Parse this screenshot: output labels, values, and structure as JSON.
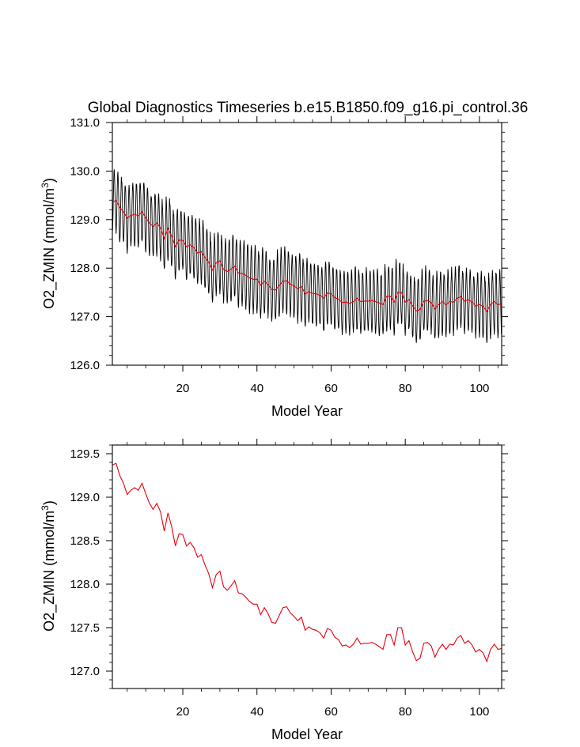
{
  "chart_data": [
    {
      "type": "line",
      "title": "Global Diagnostics Timeseries b.e15.B1850.f09_g16.pi_control.36",
      "xlabel": "Model Year",
      "ylabel": "O2_ZMIN (mmol/m",
      "ylabel_sup": "3",
      "ylabel_close": ")",
      "xlim": [
        1,
        106
      ],
      "ylim": [
        126.0,
        131.0
      ],
      "xticks": [
        20,
        40,
        60,
        80,
        100
      ],
      "xtick_labels": [
        "20",
        "40",
        "60",
        "80",
        "100"
      ],
      "yticks": [
        126.0,
        127.0,
        128.0,
        129.0,
        130.0,
        131.0
      ],
      "ytick_labels": [
        "126.0",
        "127.0",
        "128.0",
        "129.0",
        "130.0",
        "131.0"
      ],
      "grid": false,
      "series": [
        {
          "color": "#000000",
          "kind": "monthly",
          "amplitude_note": "seasonal cycle around annual mean, peak-to-trough about 1.3 mmol/m3"
        },
        {
          "color": "#e8000b",
          "kind": "annual-mean"
        }
      ]
    },
    {
      "type": "line",
      "title": "",
      "xlabel": "Model Year",
      "ylabel": "O2_ZMIN (mmol/m",
      "ylabel_sup": "3",
      "ylabel_close": ")",
      "xlim": [
        1,
        106
      ],
      "ylim": [
        126.8,
        129.6
      ],
      "xticks": [
        20,
        40,
        60,
        80,
        100
      ],
      "xtick_labels": [
        "20",
        "40",
        "60",
        "80",
        "100"
      ],
      "yticks": [
        127.0,
        127.5,
        128.0,
        128.5,
        129.0,
        129.5
      ],
      "ytick_labels": [
        "127.0",
        "127.5",
        "128.0",
        "128.5",
        "129.0",
        "129.5"
      ],
      "grid": false,
      "series": [
        {
          "color": "#e8000b",
          "kind": "annual-mean"
        }
      ]
    }
  ],
  "annual_mean": {
    "x": [
      1,
      2,
      3,
      4,
      5,
      6,
      7,
      8,
      9,
      10,
      11,
      12,
      13,
      14,
      15,
      16,
      17,
      18,
      19,
      20,
      21,
      22,
      23,
      24,
      25,
      26,
      27,
      28,
      29,
      30,
      31,
      32,
      33,
      34,
      35,
      36,
      37,
      38,
      39,
      40,
      41,
      42,
      43,
      44,
      45,
      46,
      47,
      48,
      49,
      50,
      51,
      52,
      53,
      54,
      55,
      56,
      57,
      58,
      59,
      60,
      61,
      62,
      63,
      64,
      65,
      66,
      67,
      68,
      69,
      70,
      71,
      72,
      73,
      74,
      75,
      76,
      77,
      78,
      79,
      80,
      81,
      82,
      83,
      84,
      85,
      86,
      87,
      88,
      89,
      90,
      91,
      92,
      93,
      94,
      95,
      96,
      97,
      98,
      99,
      100,
      101,
      102,
      103,
      104,
      105,
      106
    ],
    "y": [
      129.37,
      129.39,
      129.25,
      129.16,
      129.03,
      129.08,
      129.11,
      129.08,
      129.16,
      129.04,
      128.93,
      128.86,
      128.93,
      128.83,
      128.61,
      128.82,
      128.66,
      128.44,
      128.58,
      128.57,
      128.44,
      128.48,
      128.42,
      128.31,
      128.34,
      128.22,
      128.12,
      127.96,
      128.11,
      128.15,
      127.97,
      127.93,
      127.98,
      128.04,
      127.9,
      127.89,
      127.85,
      127.8,
      127.77,
      127.77,
      127.65,
      127.73,
      127.66,
      127.56,
      127.55,
      127.64,
      127.73,
      127.74,
      127.67,
      127.63,
      127.58,
      127.62,
      127.47,
      127.51,
      127.48,
      127.47,
      127.44,
      127.38,
      127.49,
      127.47,
      127.39,
      127.36,
      127.29,
      127.3,
      127.27,
      127.31,
      127.38,
      127.31,
      127.32,
      127.32,
      127.33,
      127.31,
      127.28,
      127.25,
      127.42,
      127.42,
      127.3,
      127.5,
      127.5,
      127.3,
      127.35,
      127.22,
      127.12,
      127.15,
      127.32,
      127.33,
      127.29,
      127.16,
      127.25,
      127.31,
      127.25,
      127.31,
      127.3,
      127.38,
      127.41,
      127.32,
      127.35,
      127.3,
      127.22,
      127.25,
      127.21,
      127.11,
      127.25,
      127.31,
      127.25,
      127.26
    ]
  }
}
